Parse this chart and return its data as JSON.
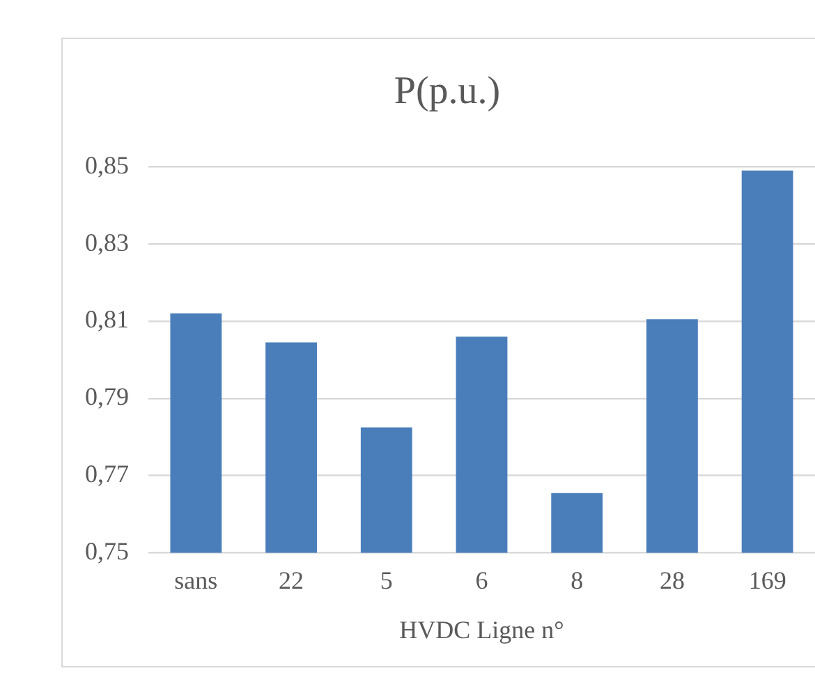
{
  "chart_data": {
    "type": "bar",
    "title": "P(p.u.)",
    "xlabel": "HVDC Ligne n°",
    "categories": [
      "sans",
      "22",
      "5",
      "6",
      "8",
      "28",
      "169"
    ],
    "values": [
      0.812,
      0.8045,
      0.7825,
      0.806,
      0.7655,
      0.8105,
      0.849
    ],
    "color": "#4a7ebb",
    "ylim": [
      0.75,
      0.85
    ],
    "yticks": [
      {
        "value": 0.75,
        "label": "0,75"
      },
      {
        "value": 0.77,
        "label": "0,77"
      },
      {
        "value": 0.79,
        "label": "0,79"
      },
      {
        "value": 0.81,
        "label": "0,81"
      },
      {
        "value": 0.83,
        "label": "0,83"
      },
      {
        "value": 0.85,
        "label": "0,85"
      }
    ],
    "grid": "y",
    "legend": false
  }
}
